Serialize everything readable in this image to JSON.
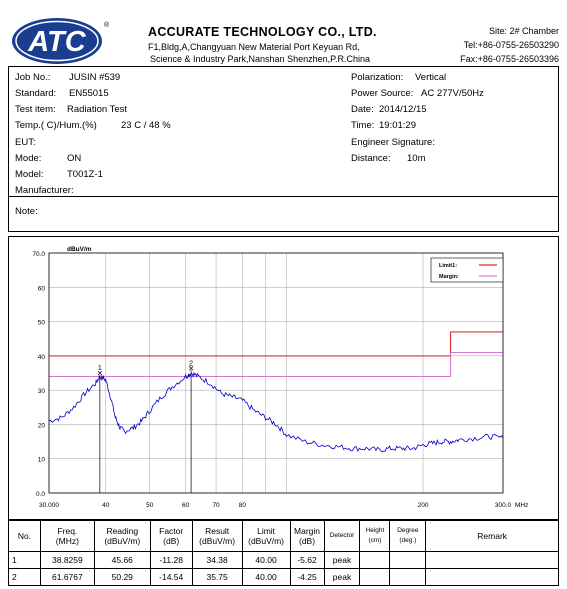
{
  "header": {
    "logo_text": "ATC",
    "registered_mark": "®",
    "company_name": "ACCURATE TECHNOLOGY CO., LTD.",
    "address_line1": "F1,Bldg,A,Changyuan New Material Port Keyuan Rd,",
    "address_line2": "Science & Industry Park,Nanshan Shenzhen,P.R.China",
    "site": "Site:  2# Chamber",
    "tel": "Tel:+86-0755-26503290",
    "fax": "Fax:+86-0755-26503396"
  },
  "info": {
    "job_no_label": "Job No.:",
    "job_no": "JUSIN #539",
    "standard_label": "Standard:",
    "standard": "EN55015",
    "test_item_label": "Test item:",
    "test_item": "Radiation Test",
    "temp_label": "Temp.(   C)/Hum.(%)",
    "temp_value": "23   C / 48 %",
    "eut_label": "EUT:",
    "mode_label": "Mode:",
    "mode": "ON",
    "model_label": "Model:",
    "model": "T001Z-1",
    "manufacturer_label": "Manufacturer:",
    "polarization_label": "Polarization:",
    "polarization": "Vertical",
    "power_label": "Power Source:",
    "power": "AC 277V/50Hz",
    "date_label": "Date:",
    "date": "2014/12/15",
    "time_label": "Time:",
    "time": "19:01:29",
    "signature_label": "Engineer Signature:",
    "distance_label": "Distance:",
    "distance": "10m",
    "note_label": "Note:"
  },
  "chart_data": {
    "type": "line",
    "ylabel": "dBuV/m",
    "xlabel": "MHz",
    "x_scale": "log",
    "ylim": [
      0.0,
      70.0
    ],
    "xlim": [
      30.0,
      300.0
    ],
    "y_ticks": [
      "0.0",
      "10",
      "20",
      "30",
      "40",
      "50",
      "60",
      "70.0"
    ],
    "x_ticks": [
      "30.000",
      "40",
      "50",
      "60",
      "70",
      "80",
      "200",
      "300.0"
    ],
    "x_tick_values": [
      30,
      40,
      50,
      60,
      70,
      80,
      200,
      300
    ],
    "grid": true,
    "legend": [
      {
        "name": "Limit1:",
        "color": "#cc0000"
      },
      {
        "name": "Margin:",
        "color": "#cc66cc"
      }
    ],
    "limit1": {
      "segments": [
        [
          30,
          40.0
        ],
        [
          230,
          40.0
        ],
        [
          230,
          47.0
        ],
        [
          300,
          47.0
        ]
      ]
    },
    "margin": {
      "segments": [
        [
          30,
          34.0
        ],
        [
          230,
          34.0
        ],
        [
          230,
          41.0
        ],
        [
          300,
          41.0
        ]
      ]
    },
    "series": [
      {
        "color": "#0000cc",
        "x": [
          30,
          32,
          34,
          36,
          38,
          38.8,
          40,
          41,
          42,
          43,
          44,
          46,
          48,
          50,
          53,
          56,
          60,
          61.7,
          64,
          68,
          72,
          76,
          80,
          85,
          90,
          95,
          100,
          110,
          120,
          130,
          140,
          150,
          160,
          170,
          180,
          190,
          200,
          210,
          220,
          230,
          240,
          260,
          280,
          300
        ],
        "y": [
          21,
          22,
          25,
          29,
          32,
          34,
          33,
          28,
          22,
          19,
          18,
          19,
          21,
          24,
          28,
          31,
          34,
          35,
          34,
          32,
          29,
          28,
          27,
          24,
          22,
          20,
          17,
          15,
          14,
          13.5,
          13,
          13,
          12.5,
          13,
          13,
          13,
          14,
          14.5,
          15,
          15,
          15.5,
          16,
          16.5,
          16
        ]
      }
    ],
    "markers": [
      {
        "label": "1",
        "x": 38.8259,
        "y": 34.38
      },
      {
        "label": "2",
        "x": 61.6767,
        "y": 35.75
      }
    ]
  },
  "table": {
    "headers": [
      "No.",
      "Freq.\n(MHz)",
      "Reading\n(dBuV/m)",
      "Factor\n(dB)",
      "Result\n(dBuV/m)",
      "Limit\n(dBuV/m)",
      "Margin\n(dB)",
      "Detector",
      "Height\n(cm)",
      "Degree\n(deg.)",
      "Remark"
    ],
    "rows": [
      [
        "1",
        "38.8259",
        "45.66",
        "-11.28",
        "34.38",
        "40.00",
        "-5.62",
        "peak",
        "",
        "",
        ""
      ],
      [
        "2",
        "61.6767",
        "50.29",
        "-14.54",
        "35.75",
        "40.00",
        "-4.25",
        "peak",
        "",
        "",
        ""
      ]
    ]
  }
}
